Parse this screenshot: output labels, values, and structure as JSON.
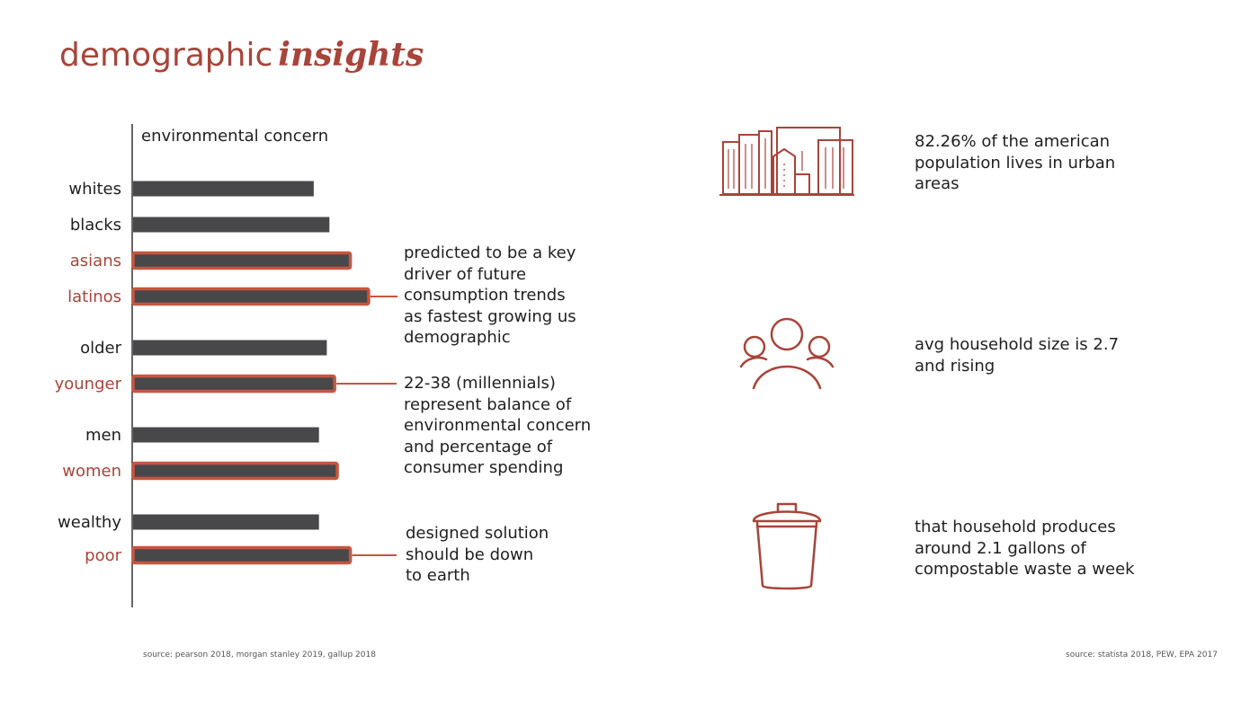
{
  "title": {
    "regular": "demographic",
    "emphasis": "insights"
  },
  "colors": {
    "accent": "#a8443a",
    "highlight_border": "#c8553f",
    "bar": "#48484b",
    "text": "#1f1f1f"
  },
  "chart_data": {
    "type": "bar",
    "orientation": "horizontal",
    "title": "environmental concern",
    "categories": [
      "whites",
      "blacks",
      "asians",
      "latinos",
      "older",
      "younger",
      "men",
      "women",
      "wealthy",
      "poor"
    ],
    "values": [
      69,
      75,
      83,
      90,
      74,
      77,
      71,
      78,
      71,
      83
    ],
    "highlighted": [
      false,
      false,
      true,
      true,
      false,
      true,
      false,
      true,
      false,
      true
    ],
    "xlim": [
      0,
      100
    ],
    "grid": false
  },
  "annotations": [
    {
      "text": "predicted to be a key driver of future consumption trends as fastest growing us demographic"
    },
    {
      "text": "22-38 (millennials) represent balance of environmental concern and percentage of consumer spending"
    },
    {
      "text": "designed solution should be down to earth"
    }
  ],
  "stats": [
    {
      "icon": "city-skyline-icon",
      "text": "82.26% of the american population lives in urban areas"
    },
    {
      "icon": "family-icon",
      "text": "avg household size is 2.7 and rising"
    },
    {
      "icon": "trash-can-icon",
      "text": "that household produces around 2.1 gallons of compostable waste a week"
    }
  ],
  "sources": {
    "left": "source: pearson 2018, morgan stanley 2019, gallup 2018",
    "right": "source: statista 2018,  PEW, EPA 2017"
  }
}
